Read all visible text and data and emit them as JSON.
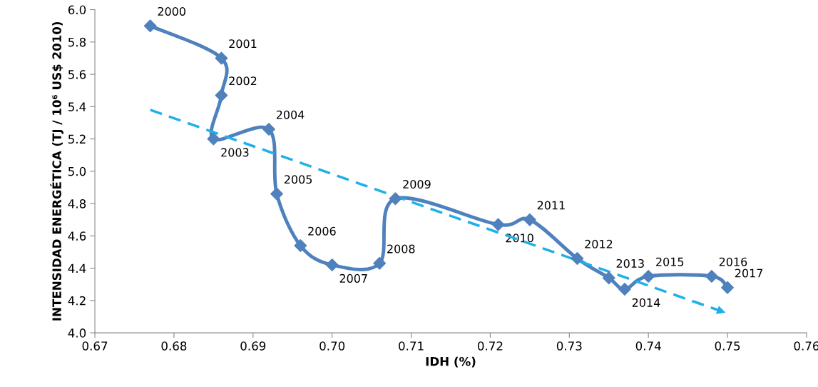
{
  "chart_data": {
    "type": "line",
    "xlabel": "IDH (%)",
    "ylabel": "INTENSIDAD ENERGÉTICA (TJ / 10⁶ US$ 2010)",
    "xlim": [
      0.67,
      0.76
    ],
    "xticks": [
      {
        "value": 0.67,
        "label": "0.67"
      },
      {
        "value": 0.68,
        "label": "0.68"
      },
      {
        "value": 0.69,
        "label": "0.69"
      },
      {
        "value": 0.7,
        "label": "0.70"
      },
      {
        "value": 0.71,
        "label": "0.71"
      },
      {
        "value": 0.72,
        "label": "0.72"
      },
      {
        "value": 0.73,
        "label": "0.73"
      },
      {
        "value": 0.74,
        "label": "0.74"
      },
      {
        "value": 0.75,
        "label": "0.75"
      },
      {
        "value": 0.76,
        "label": "0.76"
      }
    ],
    "ylim": [
      4.0,
      6.0
    ],
    "yticks": [
      {
        "value": 4.0,
        "label": "4.0"
      },
      {
        "value": 4.2,
        "label": "4.2"
      },
      {
        "value": 4.4,
        "label": "4.4"
      },
      {
        "value": 4.6,
        "label": "4.6"
      },
      {
        "value": 4.8,
        "label": "4.8"
      },
      {
        "value": 5.0,
        "label": "5.0"
      },
      {
        "value": 5.2,
        "label": "5.2"
      },
      {
        "value": 5.4,
        "label": "5.4"
      },
      {
        "value": 5.6,
        "label": "5.6"
      },
      {
        "value": 5.8,
        "label": "5.8"
      },
      {
        "value": 6.0,
        "label": "6.0"
      }
    ],
    "grid": false,
    "legend": false,
    "annotations": [
      {
        "text": "2000",
        "x": 0.677,
        "y": 5.9
      },
      {
        "text": "2001",
        "x": 0.686,
        "y": 5.7
      },
      {
        "text": "2002",
        "x": 0.686,
        "y": 5.47
      },
      {
        "text": "2003",
        "x": 0.685,
        "y": 5.2
      },
      {
        "text": "2004",
        "x": 0.692,
        "y": 5.26
      },
      {
        "text": "2005",
        "x": 0.693,
        "y": 4.86
      },
      {
        "text": "2006",
        "x": 0.696,
        "y": 4.54
      },
      {
        "text": "2007",
        "x": 0.7,
        "y": 4.42
      },
      {
        "text": "2008",
        "x": 0.706,
        "y": 4.43
      },
      {
        "text": "2009",
        "x": 0.708,
        "y": 4.83
      },
      {
        "text": "2010",
        "x": 0.721,
        "y": 4.67
      },
      {
        "text": "2011",
        "x": 0.725,
        "y": 4.7
      },
      {
        "text": "2012",
        "x": 0.731,
        "y": 4.46
      },
      {
        "text": "2013",
        "x": 0.735,
        "y": 4.34
      },
      {
        "text": "2014",
        "x": 0.737,
        "y": 4.27
      },
      {
        "text": "2015",
        "x": 0.74,
        "y": 4.35
      },
      {
        "text": "2016",
        "x": 0.748,
        "y": 4.35
      },
      {
        "text": "2017",
        "x": 0.75,
        "y": 4.28
      }
    ],
    "series": [
      {
        "type": "line",
        "color": "#4f81bd",
        "marker": "diamond",
        "line_style": "solid",
        "x": [
          0.677,
          0.686,
          0.686,
          0.685,
          0.692,
          0.693,
          0.696,
          0.7,
          0.706,
          0.708,
          0.721,
          0.725,
          0.731,
          0.735,
          0.737,
          0.74,
          0.748,
          0.75
        ],
        "values": [
          5.9,
          5.7,
          5.47,
          5.2,
          5.26,
          4.86,
          4.54,
          4.42,
          4.43,
          4.83,
          4.67,
          4.7,
          4.46,
          4.34,
          4.27,
          4.35,
          4.35,
          4.28
        ]
      },
      {
        "type": "line",
        "color": "#1fb0e8",
        "marker": "none",
        "line_style": "dashed",
        "x": [
          0.677,
          0.75
        ],
        "values": [
          5.38,
          4.12
        ]
      }
    ]
  }
}
